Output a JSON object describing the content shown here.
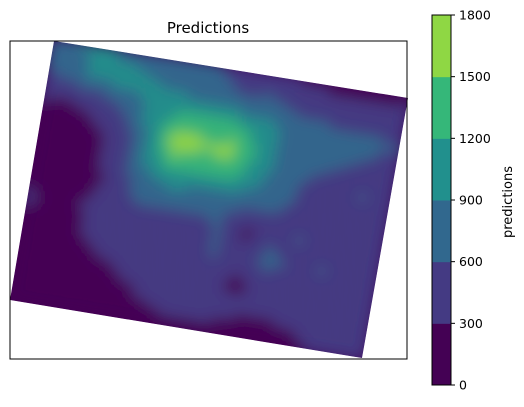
{
  "chart_data": {
    "type": "heatmap",
    "subtype": "filled-contour map",
    "title": "Predictions",
    "xlabel": "",
    "ylabel": "",
    "axis_ticks_shown": false,
    "grid": false,
    "colormap": "viridis",
    "colorbar": {
      "label": "predictions",
      "levels": [
        0,
        300,
        600,
        900,
        1200,
        1500,
        1800
      ],
      "tick_labels": [
        "0",
        "300",
        "600",
        "900",
        "1200",
        "1500",
        "1800"
      ],
      "band_colors": [
        "#440154",
        "#443a83",
        "#31688e",
        "#21908d",
        "#35b779",
        "#8fd744",
        "#fde725"
      ],
      "placement": "right"
    },
    "approx_field": {
      "grid_rows": 11,
      "grid_cols": 14,
      "row_order": "top-to-bottom",
      "values": [
        [
          750,
          900,
          950,
          750,
          720,
          650,
          600,
          500,
          450,
          300,
          250,
          200,
          150,
          250
        ],
        [
          600,
          800,
          1000,
          1050,
          900,
          800,
          700,
          600,
          650,
          550,
          450,
          400,
          500,
          500
        ],
        [
          350,
          350,
          450,
          650,
          1050,
          1200,
          1250,
          1200,
          1100,
          800,
          800,
          700,
          650,
          600
        ],
        [
          150,
          100,
          250,
          450,
          1000,
          1700,
          1550,
          1600,
          1150,
          800,
          650,
          600,
          550,
          450
        ],
        [
          100,
          80,
          200,
          450,
          900,
          1300,
          1250,
          1300,
          1000,
          700,
          550,
          500,
          600,
          500
        ],
        [
          200,
          80,
          180,
          400,
          700,
          800,
          750,
          700,
          650,
          600,
          550,
          450,
          500,
          450
        ],
        [
          350,
          200,
          300,
          500,
          550,
          400,
          500,
          600,
          200,
          500,
          600,
          500,
          550,
          400
        ],
        [
          200,
          150,
          250,
          450,
          500,
          450,
          350,
          600,
          400,
          700,
          500,
          600,
          500,
          350
        ],
        [
          100,
          100,
          150,
          250,
          350,
          350,
          450,
          350,
          250,
          350,
          450,
          500,
          350,
          300
        ],
        [
          50,
          50,
          80,
          150,
          250,
          350,
          400,
          400,
          350,
          300,
          350,
          400,
          300,
          350
        ],
        [
          50,
          50,
          50,
          100,
          150,
          200,
          250,
          250,
          150,
          150,
          200,
          300,
          350,
          350
        ]
      ]
    }
  }
}
